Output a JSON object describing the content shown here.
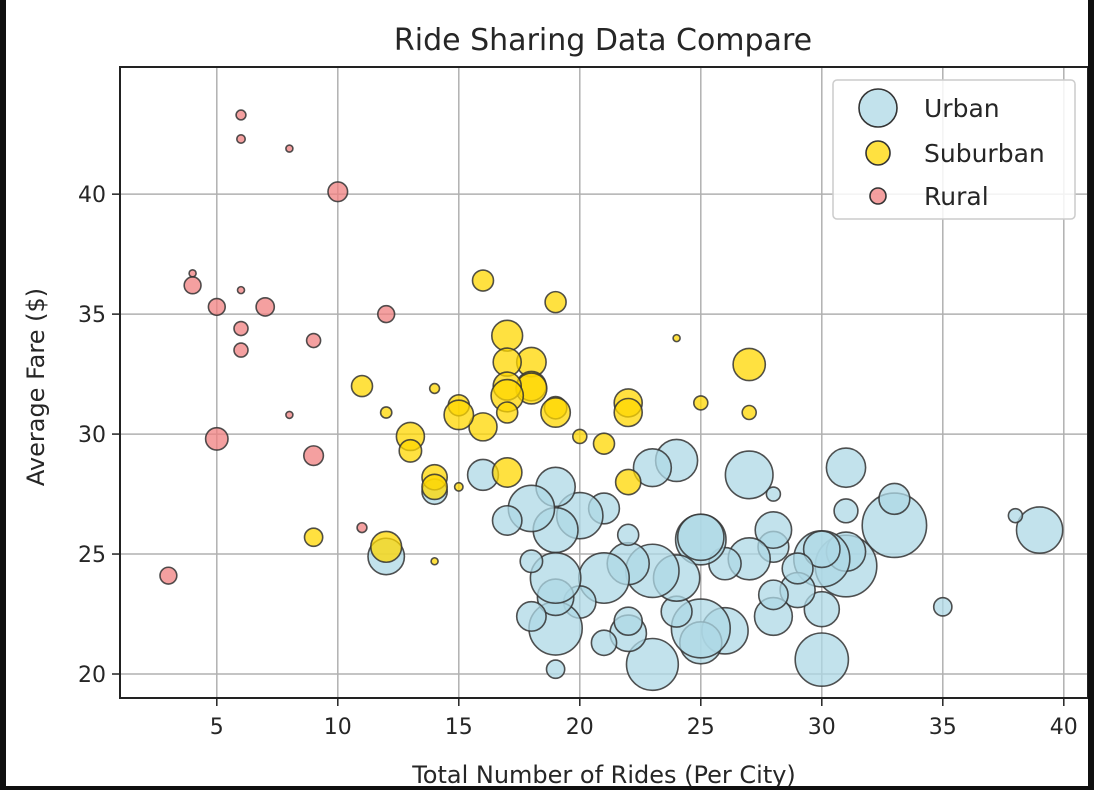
{
  "chart_data": {
    "type": "scatter",
    "title": "Ride Sharing Data Compare",
    "xlabel": "Total Number of Rides (Per City)",
    "ylabel": "Average Fare ($)",
    "xlim": [
      1,
      41
    ],
    "ylim": [
      19,
      45.3
    ],
    "xticks": [
      5,
      10,
      15,
      20,
      25,
      30,
      35,
      40
    ],
    "yticks": [
      20,
      25,
      30,
      35,
      40
    ],
    "grid": true,
    "legend_position": "top-right",
    "size_encoding": "bubble size proportional to number of drivers per city",
    "series": [
      {
        "name": "Urban",
        "color": "#add8e6",
        "edge": "#333333",
        "points": [
          {
            "x": 39,
            "y": 26.0,
            "size": 3.3
          },
          {
            "x": 38,
            "y": 26.6,
            "size": 1.0
          },
          {
            "x": 35,
            "y": 22.8,
            "size": 1.3
          },
          {
            "x": 33,
            "y": 26.2,
            "size": 4.6
          },
          {
            "x": 33,
            "y": 27.3,
            "size": 2.2
          },
          {
            "x": 31,
            "y": 24.5,
            "size": 4.4
          },
          {
            "x": 31,
            "y": 25.1,
            "size": 2.8
          },
          {
            "x": 31,
            "y": 26.8,
            "size": 1.7
          },
          {
            "x": 31,
            "y": 28.6,
            "size": 2.8
          },
          {
            "x": 30,
            "y": 20.6,
            "size": 3.8
          },
          {
            "x": 30,
            "y": 22.7,
            "size": 2.5
          },
          {
            "x": 30,
            "y": 24.8,
            "size": 4.0
          },
          {
            "x": 30,
            "y": 25.2,
            "size": 2.6
          },
          {
            "x": 29,
            "y": 23.5,
            "size": 2.5
          },
          {
            "x": 29,
            "y": 24.4,
            "size": 2.2
          },
          {
            "x": 28,
            "y": 22.4,
            "size": 2.7
          },
          {
            "x": 28,
            "y": 23.3,
            "size": 2.1
          },
          {
            "x": 28,
            "y": 25.3,
            "size": 2.2
          },
          {
            "x": 28,
            "y": 26.0,
            "size": 2.6
          },
          {
            "x": 28,
            "y": 27.5,
            "size": 1.0
          },
          {
            "x": 27,
            "y": 24.8,
            "size": 3.0
          },
          {
            "x": 27,
            "y": 28.3,
            "size": 3.4
          },
          {
            "x": 26,
            "y": 21.8,
            "size": 3.3
          },
          {
            "x": 26,
            "y": 24.6,
            "size": 2.3
          },
          {
            "x": 25,
            "y": 21.3,
            "size": 3.0
          },
          {
            "x": 25,
            "y": 21.9,
            "size": 4.2
          },
          {
            "x": 25,
            "y": 25.6,
            "size": 3.6
          },
          {
            "x": 25,
            "y": 25.7,
            "size": 3.3
          },
          {
            "x": 24,
            "y": 22.6,
            "size": 2.2
          },
          {
            "x": 24,
            "y": 24.0,
            "size": 3.3
          },
          {
            "x": 24,
            "y": 28.9,
            "size": 3.0
          },
          {
            "x": 23,
            "y": 20.4,
            "size": 3.7
          },
          {
            "x": 23,
            "y": 24.3,
            "size": 3.8
          },
          {
            "x": 23,
            "y": 28.6,
            "size": 2.7
          },
          {
            "x": 22,
            "y": 21.7,
            "size": 2.6
          },
          {
            "x": 22,
            "y": 22.2,
            "size": 2.0
          },
          {
            "x": 22,
            "y": 24.6,
            "size": 3.0
          },
          {
            "x": 22,
            "y": 25.8,
            "size": 1.5
          },
          {
            "x": 21,
            "y": 21.3,
            "size": 1.8
          },
          {
            "x": 21,
            "y": 24.0,
            "size": 3.6
          },
          {
            "x": 21,
            "y": 26.9,
            "size": 2.2
          },
          {
            "x": 20,
            "y": 23.0,
            "size": 2.3
          },
          {
            "x": 20,
            "y": 26.6,
            "size": 3.3
          },
          {
            "x": 19,
            "y": 20.2,
            "size": 1.3
          },
          {
            "x": 19,
            "y": 21.9,
            "size": 3.8
          },
          {
            "x": 19,
            "y": 23.2,
            "size": 2.6
          },
          {
            "x": 19,
            "y": 24.0,
            "size": 3.6
          },
          {
            "x": 19,
            "y": 26.0,
            "size": 3.2
          },
          {
            "x": 19,
            "y": 27.8,
            "size": 2.8
          },
          {
            "x": 18,
            "y": 22.4,
            "size": 2.1
          },
          {
            "x": 18,
            "y": 24.7,
            "size": 1.6
          },
          {
            "x": 18,
            "y": 26.9,
            "size": 3.3
          },
          {
            "x": 17,
            "y": 26.4,
            "size": 2.1
          },
          {
            "x": 16,
            "y": 28.3,
            "size": 2.2
          },
          {
            "x": 14,
            "y": 27.6,
            "size": 1.8
          },
          {
            "x": 12,
            "y": 24.9,
            "size": 2.6
          }
        ]
      },
      {
        "name": "Suburban",
        "color": "#ffd700",
        "edge": "#333333",
        "points": [
          {
            "x": 27,
            "y": 32.9,
            "size": 2.3
          },
          {
            "x": 27,
            "y": 30.9,
            "size": 1.0
          },
          {
            "x": 25,
            "y": 31.3,
            "size": 1.0
          },
          {
            "x": 24,
            "y": 34.0,
            "size": 0.5
          },
          {
            "x": 22,
            "y": 31.3,
            "size": 2.0
          },
          {
            "x": 22,
            "y": 30.9,
            "size": 2.0
          },
          {
            "x": 22,
            "y": 28.0,
            "size": 1.8
          },
          {
            "x": 21,
            "y": 29.6,
            "size": 1.5
          },
          {
            "x": 20,
            "y": 29.9,
            "size": 1.0
          },
          {
            "x": 19,
            "y": 35.5,
            "size": 1.5
          },
          {
            "x": 19,
            "y": 31.1,
            "size": 1.6
          },
          {
            "x": 19,
            "y": 30.9,
            "size": 2.1
          },
          {
            "x": 18,
            "y": 33.0,
            "size": 2.1
          },
          {
            "x": 18,
            "y": 32.0,
            "size": 2.1
          },
          {
            "x": 18,
            "y": 31.9,
            "size": 2.2
          },
          {
            "x": 17,
            "y": 34.1,
            "size": 2.2
          },
          {
            "x": 17,
            "y": 33.0,
            "size": 2.0
          },
          {
            "x": 17,
            "y": 32.0,
            "size": 2.0
          },
          {
            "x": 17,
            "y": 31.6,
            "size": 2.3
          },
          {
            "x": 17,
            "y": 30.9,
            "size": 1.5
          },
          {
            "x": 17,
            "y": 28.4,
            "size": 2.1
          },
          {
            "x": 16,
            "y": 36.4,
            "size": 1.5
          },
          {
            "x": 16,
            "y": 30.3,
            "size": 2.0
          },
          {
            "x": 15,
            "y": 31.2,
            "size": 1.5
          },
          {
            "x": 15,
            "y": 30.8,
            "size": 2.1
          },
          {
            "x": 15,
            "y": 27.8,
            "size": 0.6
          },
          {
            "x": 14,
            "y": 31.9,
            "size": 0.7
          },
          {
            "x": 14,
            "y": 28.2,
            "size": 1.8
          },
          {
            "x": 14,
            "y": 27.8,
            "size": 1.8
          },
          {
            "x": 14,
            "y": 24.7,
            "size": 0.5
          },
          {
            "x": 13,
            "y": 29.9,
            "size": 2.0
          },
          {
            "x": 13,
            "y": 29.3,
            "size": 1.6
          },
          {
            "x": 12,
            "y": 30.9,
            "size": 0.8
          },
          {
            "x": 12,
            "y": 25.3,
            "size": 2.2
          },
          {
            "x": 11,
            "y": 32.0,
            "size": 1.5
          },
          {
            "x": 9,
            "y": 25.7,
            "size": 1.3
          }
        ]
      },
      {
        "name": "Rural",
        "color": "#f08080",
        "edge": "#333333",
        "points": [
          {
            "x": 3,
            "y": 24.1,
            "size": 1.2
          },
          {
            "x": 4,
            "y": 36.7,
            "size": 0.5
          },
          {
            "x": 4,
            "y": 36.2,
            "size": 1.2
          },
          {
            "x": 5,
            "y": 35.3,
            "size": 1.2
          },
          {
            "x": 5,
            "y": 29.8,
            "size": 1.6
          },
          {
            "x": 6,
            "y": 43.3,
            "size": 0.7
          },
          {
            "x": 6,
            "y": 42.3,
            "size": 0.6
          },
          {
            "x": 6,
            "y": 36.0,
            "size": 0.5
          },
          {
            "x": 6,
            "y": 34.4,
            "size": 1.0
          },
          {
            "x": 6,
            "y": 33.5,
            "size": 1.0
          },
          {
            "x": 7,
            "y": 35.3,
            "size": 1.3
          },
          {
            "x": 8,
            "y": 41.9,
            "size": 0.5
          },
          {
            "x": 8,
            "y": 30.8,
            "size": 0.5
          },
          {
            "x": 9,
            "y": 33.9,
            "size": 1.0
          },
          {
            "x": 9,
            "y": 29.1,
            "size": 1.4
          },
          {
            "x": 10,
            "y": 40.1,
            "size": 1.4
          },
          {
            "x": 11,
            "y": 26.1,
            "size": 0.7
          },
          {
            "x": 12,
            "y": 35.0,
            "size": 1.2
          }
        ]
      }
    ]
  }
}
